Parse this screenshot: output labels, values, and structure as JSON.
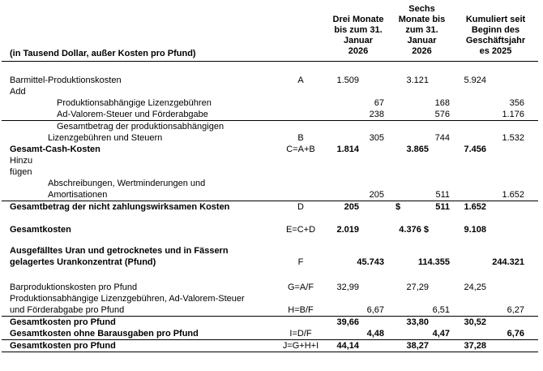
{
  "table": {
    "corner_label": "(in Tausend Dollar, außer Kosten pro Pfund)",
    "column_headers": [
      "Drei Monate\nbis zum 31.\nJanuar\n2026",
      "Sechs\nMonate bis\nzum 31.\nJanuar\n2026",
      "Kumuliert seit\nBeginn des\nGeschäftsjahr\nes 2025"
    ],
    "rows": [
      {
        "label": "Barmittel-Produktionskosten",
        "indent": "none",
        "formula": "A",
        "values": [
          "1.509",
          "3.121",
          "5.924"
        ],
        "align": "inner"
      },
      {
        "label": "Add",
        "indent": "none",
        "values": [
          "",
          "",
          ""
        ]
      },
      {
        "label": "Produktionsabhängige Lizenzgebühren",
        "indent": "deep",
        "values": [
          "67",
          "168",
          "356"
        ],
        "align": "right"
      },
      {
        "label": "Ad-Valorem-Steuer und Förderabgabe",
        "indent": "deep",
        "values": [
          "238",
          "576",
          "1.176"
        ],
        "align": "right",
        "rule_below": true
      },
      {
        "label": "Gesamtbetrag der produktionsabhängigen\nLizenzgebühren und Steuern",
        "indent": "mid",
        "hang": true,
        "formula": "B",
        "values": [
          "305",
          "744",
          "1.532"
        ],
        "align": "right"
      },
      {
        "label": "Gesamt-Cash-Kosten",
        "indent": "none",
        "bold": true,
        "formula": "C=A+B",
        "values": [
          "1.814",
          "3.865",
          "7.456"
        ],
        "align": "inner",
        "bold_values": true
      },
      {
        "label": "Hinzu\nfügen",
        "indent": "none",
        "values": [
          "",
          "",
          ""
        ]
      },
      {
        "label": "Abschreibungen, Wertminderungen und\nAmortisationen",
        "indent": "mid",
        "values": [
          "205",
          "511",
          "1.652"
        ],
        "align": "right",
        "rule_below": true
      },
      {
        "label": "Gesamtbetrag der nicht zahlungswirksamen Kosten",
        "indent": "none",
        "bold": true,
        "formula": "D",
        "values": [
          "205",
          {
            "currency": "$",
            "amount": "511"
          },
          "1.652"
        ],
        "align": "inner",
        "bold_values": true
      },
      {
        "spacer": 14
      },
      {
        "label": "Gesamtkosten",
        "indent": "none",
        "bold": true,
        "formula": "E=C+D",
        "values": [
          "2.019",
          "4.376 $",
          "9.108"
        ],
        "align": "inner",
        "bold_values": true
      },
      {
        "spacer": 12
      },
      {
        "label": "Ausgefälltes Uran und getrocknetes und in Fässern\ngelagertes Urankonzentrat (Pfund)",
        "indent": "none",
        "bold": true,
        "formula": "F",
        "values": [
          "45.743",
          "114.355",
          "244.321"
        ],
        "align": "right",
        "bold_values": true
      },
      {
        "spacer": 17
      },
      {
        "label": "Barproduktionskosten pro Pfund",
        "indent": "none",
        "formula": "G=A/F",
        "values": [
          "32,99",
          "27,29",
          "24,25"
        ],
        "align": "inner"
      },
      {
        "label": "Produktionsabhängige Lizenzgebühren, Ad-Valorem-Steuer\nund Förderabgabe pro Pfund",
        "indent": "none",
        "formula": "H=B/F",
        "values": [
          "6,67",
          "6,51",
          "6,27"
        ],
        "align": "right",
        "rule_below": true
      },
      {
        "label": "Gesamtkosten pro Pfund",
        "indent": "none",
        "bold": true,
        "values": [
          "39,66",
          "33,80",
          "30,52"
        ],
        "align": "inner",
        "bold_values": true
      },
      {
        "label": "Gesamtkosten ohne Barausgaben pro Pfund",
        "indent": "none",
        "bold": true,
        "formula": "I=D/F",
        "values": [
          "4,48",
          "4,47",
          "6,76"
        ],
        "align": "right",
        "bold_values": true,
        "rule_below": true
      },
      {
        "label": "Gesamtkosten pro Pfund",
        "indent": "none",
        "bold": true,
        "formula": "J=G+H+I",
        "values": [
          "44,14",
          "38,27",
          "37,28"
        ],
        "align": "inner",
        "bold_values": true,
        "rule_below": true
      }
    ]
  }
}
